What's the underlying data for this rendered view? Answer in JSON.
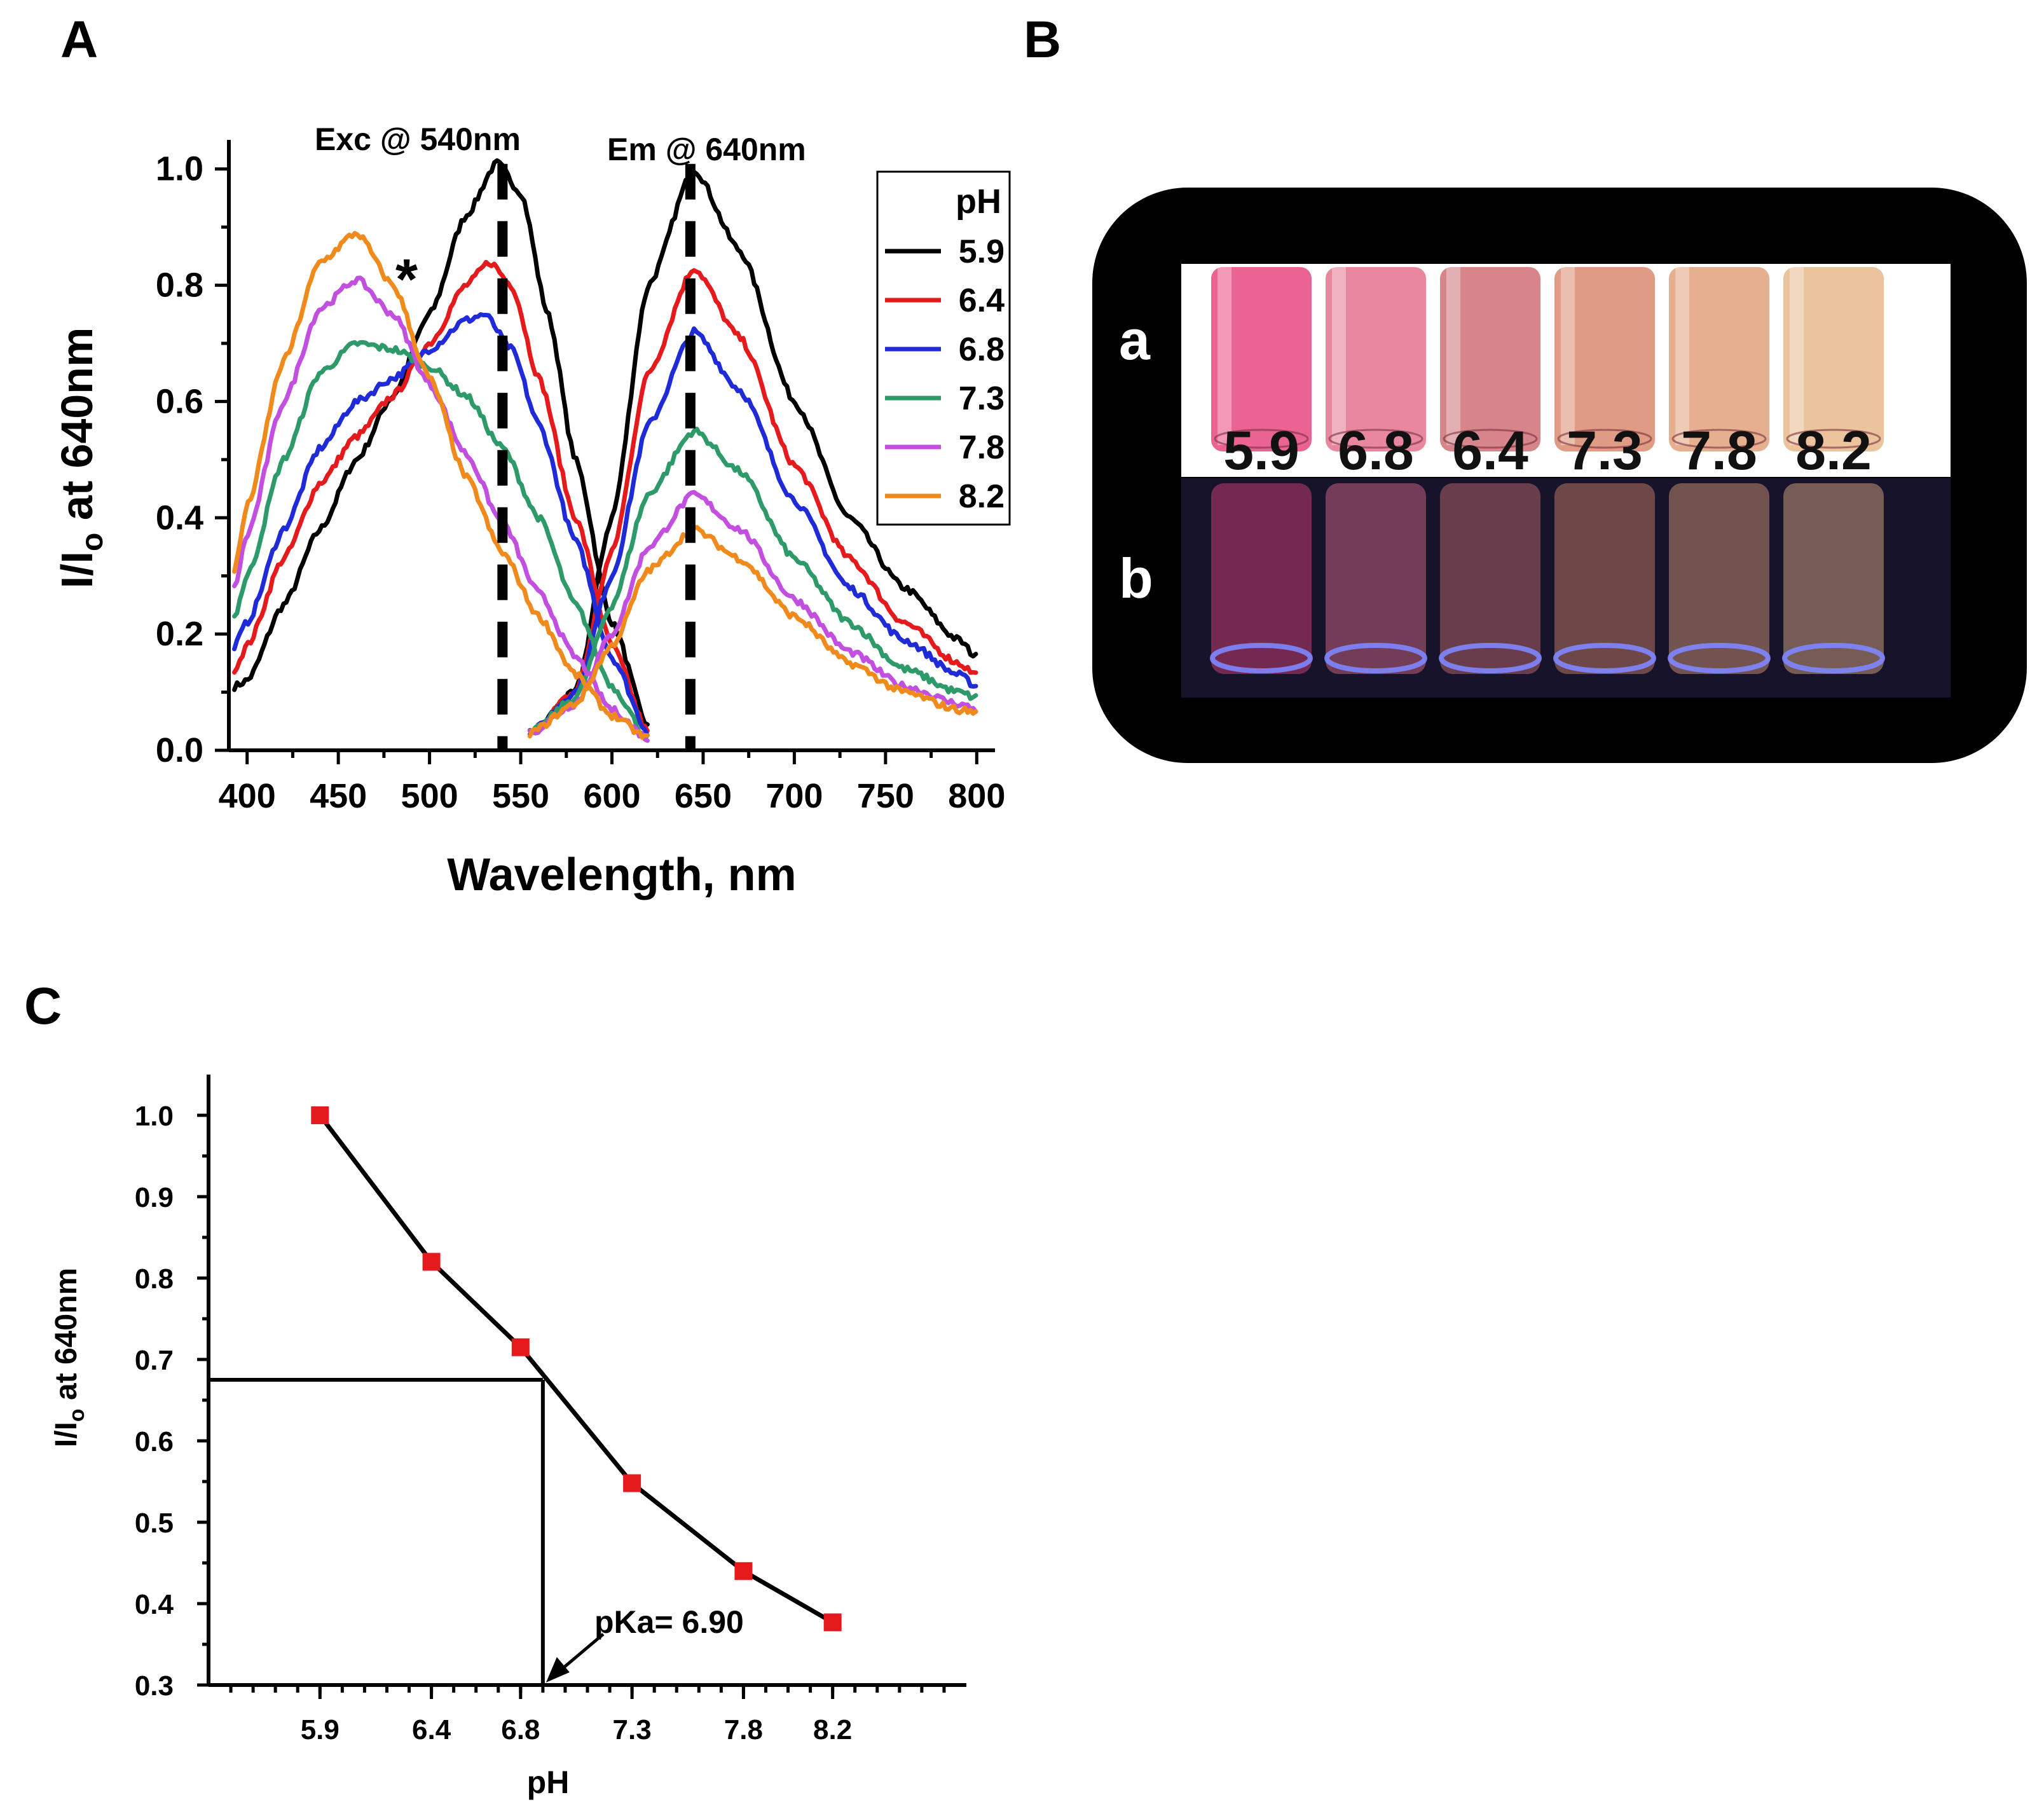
{
  "panels": {
    "a": "A",
    "b": "B",
    "c": "C"
  },
  "panelA": {
    "ylabel_main": "I/I",
    "ylabel_sub": "o",
    "ylabel_rest": " at 640nm",
    "xlabel": "Wavelength, nm",
    "exc_label": "Exc @ 540nm",
    "em_label": "Em @ 640nm",
    "star": "*",
    "legend_title": "pH",
    "legend": [
      {
        "label": "5.9",
        "color": "#000000"
      },
      {
        "label": "6.4",
        "color": "#e41a1c"
      },
      {
        "label": "6.8",
        "color": "#1f2bd6"
      },
      {
        "label": "7.3",
        "color": "#2e9a6a"
      },
      {
        "label": "7.8",
        "color": "#c24fe0"
      },
      {
        "label": "8.2",
        "color": "#f08a1c"
      }
    ]
  },
  "panelB": {
    "row_a": "a",
    "row_b": "b",
    "vial_labels": [
      "5.9",
      "6.8",
      "6.4",
      "7.3",
      "7.8",
      "8.2"
    ],
    "vial_colors": [
      "#e7487f",
      "#e5728d",
      "#cf7076",
      "#d9896f",
      "#e2a27c",
      "#e8b98b"
    ]
  },
  "panelC": {
    "ylabel_main": "I/I",
    "ylabel_sub": "o",
    "ylabel_rest": " at 640nm",
    "xlabel": "pH",
    "pka_label": "pKa= 6.90"
  },
  "chart_data": [
    {
      "type": "line",
      "title": "",
      "xlabel": "Wavelength, nm",
      "ylabel": "I/Io at 640nm",
      "xlim": [
        390,
        810
      ],
      "ylim": [
        0.0,
        1.05
      ],
      "xticks": [
        400,
        450,
        500,
        550,
        600,
        650,
        700,
        750,
        800
      ],
      "yticks": [
        0.0,
        0.2,
        0.4,
        0.6,
        0.8,
        1.0
      ],
      "annotations": [
        "Exc @ 540nm",
        "Em @ 640nm",
        "*"
      ],
      "vlines": [
        540,
        643
      ],
      "series": [
        {
          "name": "5.9",
          "color": "#000000",
          "excitation": [
            [
              393,
              0.11
            ],
            [
              400,
              0.12
            ],
            [
              420,
              0.25
            ],
            [
              440,
              0.38
            ],
            [
              460,
              0.5
            ],
            [
              480,
              0.61
            ],
            [
              500,
              0.75
            ],
            [
              520,
              0.92
            ],
            [
              537,
              1.01
            ],
            [
              550,
              0.96
            ],
            [
              565,
              0.75
            ],
            [
              580,
              0.5
            ],
            [
              600,
              0.22
            ],
            [
              620,
              0.04
            ]
          ],
          "emission": [
            [
              555,
              0.03
            ],
            [
              580,
              0.1
            ],
            [
              600,
              0.4
            ],
            [
              620,
              0.8
            ],
            [
              645,
              1.0
            ],
            [
              670,
              0.86
            ],
            [
              700,
              0.6
            ],
            [
              730,
              0.4
            ],
            [
              760,
              0.28
            ],
            [
              790,
              0.19
            ],
            [
              800,
              0.16
            ]
          ]
        },
        {
          "name": "6.4",
          "color": "#e41a1c",
          "excitation": [
            [
              393,
              0.14
            ],
            [
              400,
              0.18
            ],
            [
              420,
              0.33
            ],
            [
              440,
              0.46
            ],
            [
              460,
              0.54
            ],
            [
              480,
              0.61
            ],
            [
              500,
              0.7
            ],
            [
              520,
              0.8
            ],
            [
              533,
              0.84
            ],
            [
              545,
              0.8
            ],
            [
              560,
              0.64
            ],
            [
              580,
              0.4
            ],
            [
              600,
              0.18
            ],
            [
              620,
              0.03
            ]
          ],
          "emission": [
            [
              555,
              0.03
            ],
            [
              580,
              0.1
            ],
            [
              600,
              0.34
            ],
            [
              620,
              0.65
            ],
            [
              645,
              0.83
            ],
            [
              670,
              0.71
            ],
            [
              700,
              0.49
            ],
            [
              730,
              0.33
            ],
            [
              760,
              0.22
            ],
            [
              790,
              0.15
            ],
            [
              800,
              0.13
            ]
          ]
        },
        {
          "name": "6.8",
          "color": "#1f2bd6",
          "excitation": [
            [
              393,
              0.18
            ],
            [
              400,
              0.22
            ],
            [
              420,
              0.38
            ],
            [
              440,
              0.52
            ],
            [
              460,
              0.6
            ],
            [
              480,
              0.64
            ],
            [
              500,
              0.69
            ],
            [
              520,
              0.74
            ],
            [
              530,
              0.75
            ],
            [
              545,
              0.69
            ],
            [
              560,
              0.56
            ],
            [
              580,
              0.36
            ],
            [
              600,
              0.16
            ],
            [
              620,
              0.03
            ]
          ],
          "emission": [
            [
              555,
              0.03
            ],
            [
              580,
              0.1
            ],
            [
              600,
              0.3
            ],
            [
              620,
              0.56
            ],
            [
              645,
              0.72
            ],
            [
              670,
              0.62
            ],
            [
              700,
              0.43
            ],
            [
              730,
              0.28
            ],
            [
              760,
              0.19
            ],
            [
              790,
              0.13
            ],
            [
              800,
              0.11
            ]
          ]
        },
        {
          "name": "7.3",
          "color": "#2e9a6a",
          "excitation": [
            [
              393,
              0.23
            ],
            [
              400,
              0.3
            ],
            [
              420,
              0.5
            ],
            [
              440,
              0.65
            ],
            [
              460,
              0.7
            ],
            [
              480,
              0.69
            ],
            [
              500,
              0.66
            ],
            [
              520,
              0.61
            ],
            [
              540,
              0.52
            ],
            [
              560,
              0.4
            ],
            [
              580,
              0.25
            ],
            [
              600,
              0.11
            ],
            [
              620,
              0.02
            ]
          ],
          "emission": [
            [
              555,
              0.03
            ],
            [
              580,
              0.09
            ],
            [
              600,
              0.25
            ],
            [
              620,
              0.44
            ],
            [
              645,
              0.55
            ],
            [
              670,
              0.48
            ],
            [
              700,
              0.33
            ],
            [
              730,
              0.22
            ],
            [
              760,
              0.14
            ],
            [
              790,
              0.1
            ],
            [
              800,
              0.09
            ]
          ]
        },
        {
          "name": "7.8",
          "color": "#c24fe0",
          "excitation": [
            [
              393,
              0.28
            ],
            [
              400,
              0.37
            ],
            [
              420,
              0.6
            ],
            [
              440,
              0.76
            ],
            [
              460,
              0.81
            ],
            [
              480,
              0.75
            ],
            [
              500,
              0.63
            ],
            [
              520,
              0.51
            ],
            [
              540,
              0.39
            ],
            [
              560,
              0.27
            ],
            [
              580,
              0.16
            ],
            [
              600,
              0.07
            ],
            [
              620,
              0.02
            ]
          ],
          "emission": [
            [
              555,
              0.03
            ],
            [
              580,
              0.08
            ],
            [
              600,
              0.2
            ],
            [
              620,
              0.35
            ],
            [
              645,
              0.44
            ],
            [
              670,
              0.38
            ],
            [
              700,
              0.26
            ],
            [
              730,
              0.17
            ],
            [
              760,
              0.11
            ],
            [
              790,
              0.08
            ],
            [
              800,
              0.07
            ]
          ]
        },
        {
          "name": "8.2",
          "color": "#f08a1c",
          "excitation": [
            [
              393,
              0.31
            ],
            [
              400,
              0.42
            ],
            [
              420,
              0.67
            ],
            [
              440,
              0.84
            ],
            [
              460,
              0.89
            ],
            [
              480,
              0.8
            ],
            [
              500,
              0.64
            ],
            [
              520,
              0.47
            ],
            [
              540,
              0.34
            ],
            [
              560,
              0.23
            ],
            [
              580,
              0.13
            ],
            [
              600,
              0.06
            ],
            [
              620,
              0.02
            ]
          ],
          "emission": [
            [
              555,
              0.03
            ],
            [
              580,
              0.08
            ],
            [
              600,
              0.18
            ],
            [
              620,
              0.31
            ],
            [
              645,
              0.38
            ],
            [
              670,
              0.33
            ],
            [
              700,
              0.23
            ],
            [
              730,
              0.15
            ],
            [
              760,
              0.1
            ],
            [
              790,
              0.07
            ],
            [
              800,
              0.065
            ]
          ]
        }
      ]
    },
    {
      "type": "line",
      "title": "",
      "xlabel": "pH",
      "ylabel": "I/Io at 640nm",
      "xlim": [
        5.4,
        8.8
      ],
      "ylim": [
        0.3,
        1.05
      ],
      "xticks": [
        5.9,
        6.4,
        6.8,
        7.3,
        7.8,
        8.2
      ],
      "xtick_labels": [
        "5.9",
        "6.4",
        "6.8",
        "7.3",
        "7.8",
        "8.2"
      ],
      "yticks": [
        0.3,
        0.4,
        0.5,
        0.6,
        0.7,
        0.8,
        0.9,
        1.0
      ],
      "ytick_labels": [
        "0.3",
        "0.4",
        "0.5",
        "0.6",
        "0.7",
        "0.8",
        "0.9",
        "1.0"
      ],
      "x": [
        5.9,
        6.4,
        6.8,
        7.3,
        7.8,
        8.2
      ],
      "values": [
        1.0,
        0.82,
        0.715,
        0.548,
        0.44,
        0.377
      ],
      "marker_color": "#e41a1c",
      "pka": 6.9,
      "pka_y": 0.675,
      "annotation": "pKa= 6.90"
    }
  ]
}
